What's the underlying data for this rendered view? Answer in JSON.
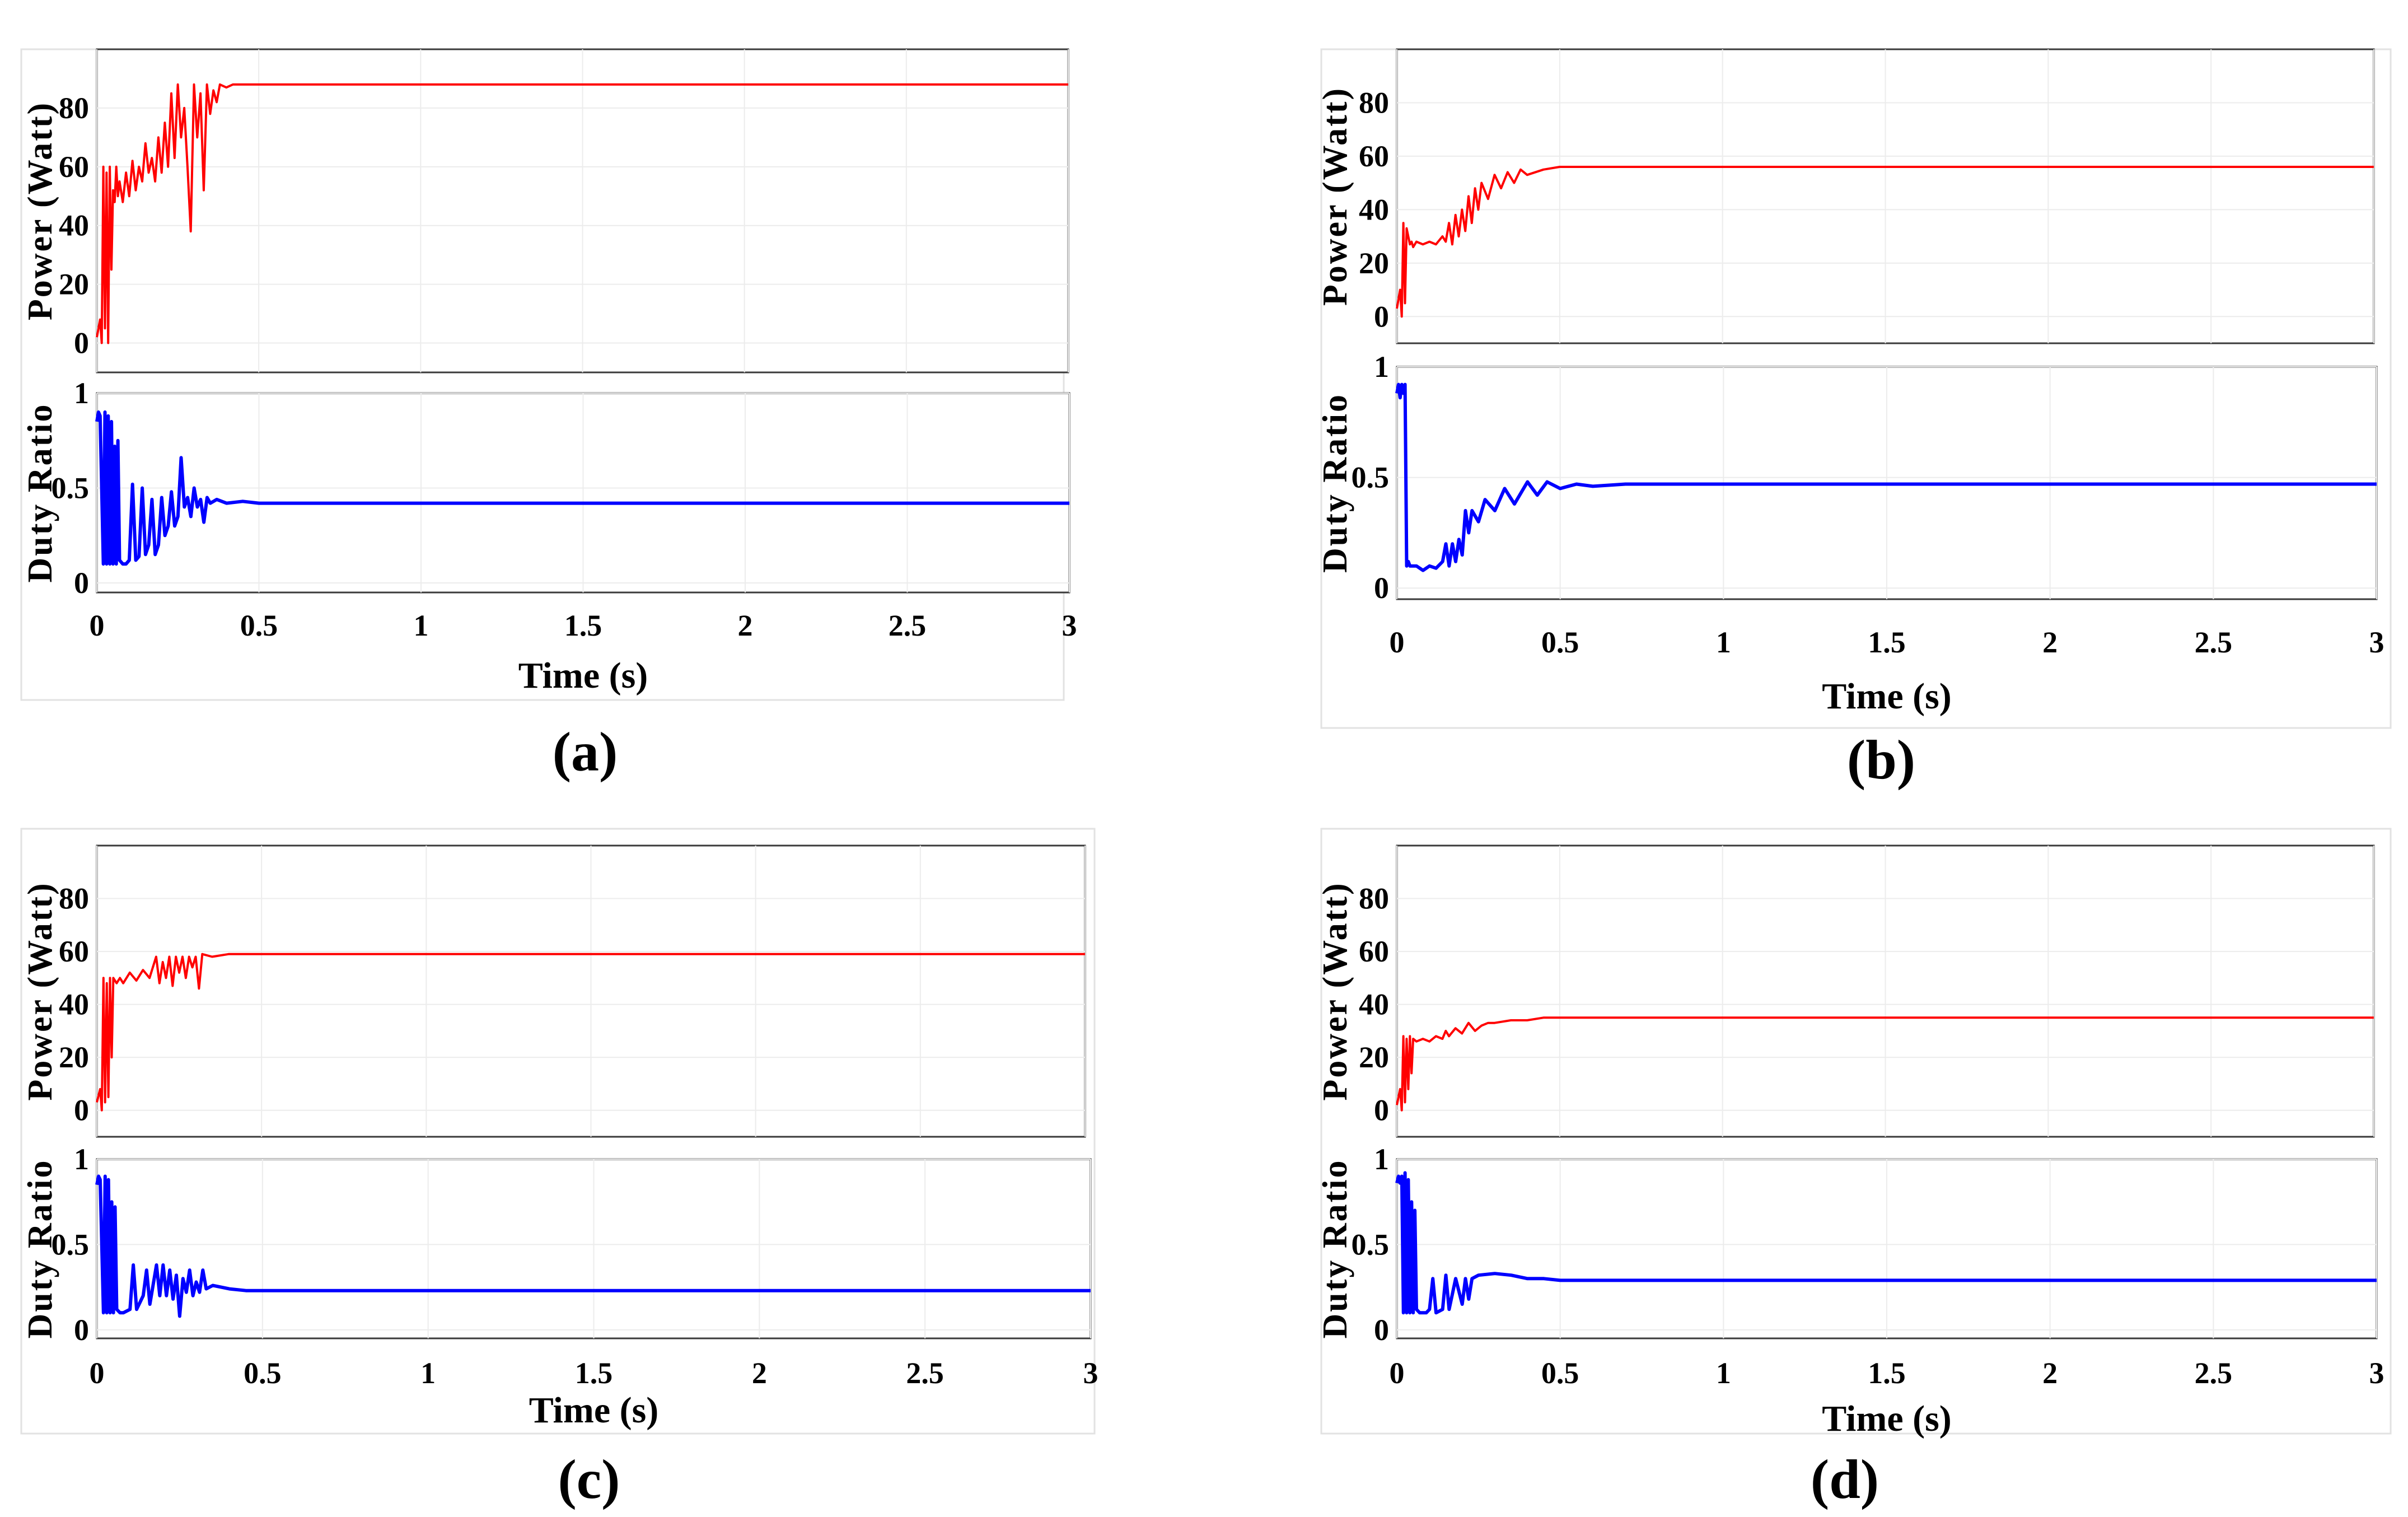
{
  "figure": {
    "panels": [
      "a",
      "b",
      "c",
      "d"
    ]
  },
  "chart_data": [
    {
      "id": "a",
      "type": "line",
      "caption": "(a)",
      "xlabel": "Time (s)",
      "xlim": [
        0,
        3
      ],
      "xticks": [
        0,
        0.5,
        1,
        1.5,
        2,
        2.5,
        3
      ],
      "xtick_labels": [
        "0",
        "0.5",
        "1",
        "1.5",
        "2",
        "2.5",
        "3"
      ],
      "subplots": [
        {
          "name": "power",
          "ylabel": "Power (Watt)",
          "ylim": [
            -10,
            100
          ],
          "yticks": [
            0,
            20,
            40,
            60,
            80
          ],
          "ytick_labels": [
            "0",
            "20",
            "40",
            "60",
            "80"
          ],
          "color": "#ff0000",
          "series": {
            "name": "Power",
            "x": [
              0,
              0.01,
              0.015,
              0.02,
              0.025,
              0.03,
              0.035,
              0.04,
              0.045,
              0.05,
              0.055,
              0.06,
              0.065,
              0.07,
              0.08,
              0.09,
              0.1,
              0.11,
              0.12,
              0.13,
              0.14,
              0.15,
              0.16,
              0.17,
              0.18,
              0.19,
              0.2,
              0.21,
              0.22,
              0.23,
              0.24,
              0.25,
              0.26,
              0.27,
              0.28,
              0.29,
              0.3,
              0.31,
              0.32,
              0.33,
              0.34,
              0.35,
              0.36,
              0.37,
              0.38,
              0.4,
              0.42,
              0.45,
              0.5,
              0.6,
              1,
              1.5,
              2,
              2.5,
              3
            ],
            "y": [
              2,
              8,
              0,
              60,
              5,
              58,
              0,
              60,
              25,
              52,
              48,
              60,
              50,
              55,
              48,
              58,
              50,
              62,
              52,
              60,
              55,
              68,
              58,
              63,
              55,
              70,
              58,
              75,
              60,
              85,
              63,
              88,
              70,
              80,
              60,
              38,
              88,
              70,
              85,
              52,
              88,
              78,
              86,
              82,
              88,
              87,
              88,
              88,
              88,
              88,
              88,
              88,
              88,
              88,
              88
            ]
          }
        },
        {
          "name": "duty",
          "ylabel": "Duty Ratio",
          "ylim": [
            -0.05,
            1
          ],
          "yticks": [
            0,
            0.5,
            1
          ],
          "ytick_labels": [
            "0",
            "0.5",
            "1"
          ],
          "color": "#0000ff",
          "series": {
            "name": "Duty Ratio",
            "x": [
              0,
              0.005,
              0.01,
              0.02,
              0.025,
              0.03,
              0.035,
              0.04,
              0.045,
              0.05,
              0.055,
              0.06,
              0.065,
              0.07,
              0.08,
              0.09,
              0.1,
              0.11,
              0.12,
              0.13,
              0.14,
              0.15,
              0.16,
              0.17,
              0.18,
              0.19,
              0.2,
              0.21,
              0.22,
              0.23,
              0.24,
              0.25,
              0.26,
              0.27,
              0.28,
              0.29,
              0.3,
              0.31,
              0.32,
              0.33,
              0.34,
              0.35,
              0.37,
              0.4,
              0.45,
              0.5,
              0.6,
              1,
              1.5,
              2,
              2.5,
              3
            ],
            "y": [
              0.85,
              0.9,
              0.88,
              0.1,
              0.9,
              0.1,
              0.88,
              0.1,
              0.85,
              0.1,
              0.72,
              0.1,
              0.75,
              0.12,
              0.1,
              0.1,
              0.12,
              0.52,
              0.12,
              0.14,
              0.5,
              0.15,
              0.2,
              0.44,
              0.15,
              0.2,
              0.45,
              0.25,
              0.3,
              0.48,
              0.3,
              0.35,
              0.66,
              0.4,
              0.45,
              0.35,
              0.5,
              0.4,
              0.44,
              0.32,
              0.45,
              0.42,
              0.44,
              0.42,
              0.43,
              0.42,
              0.42,
              0.42,
              0.42,
              0.42,
              0.42,
              0.42
            ]
          }
        }
      ]
    },
    {
      "id": "b",
      "type": "line",
      "caption": "(b)",
      "xlabel": "Time (s)",
      "xlim": [
        0,
        3
      ],
      "xticks": [
        0,
        0.5,
        1,
        1.5,
        2,
        2.5,
        3
      ],
      "xtick_labels": [
        "0",
        "0.5",
        "1",
        "1.5",
        "2",
        "2.5",
        "3"
      ],
      "subplots": [
        {
          "name": "power",
          "ylabel": "Power (Watt)",
          "ylim": [
            -10,
            100
          ],
          "yticks": [
            0,
            20,
            40,
            60,
            80
          ],
          "ytick_labels": [
            "0",
            "20",
            "40",
            "60",
            "80"
          ],
          "color": "#ff0000",
          "series": {
            "name": "Power",
            "x": [
              0,
              0.01,
              0.015,
              0.02,
              0.025,
              0.03,
              0.04,
              0.045,
              0.05,
              0.06,
              0.08,
              0.1,
              0.12,
              0.14,
              0.15,
              0.16,
              0.17,
              0.18,
              0.19,
              0.2,
              0.21,
              0.22,
              0.23,
              0.24,
              0.25,
              0.26,
              0.28,
              0.3,
              0.32,
              0.34,
              0.36,
              0.38,
              0.4,
              0.45,
              0.5,
              0.55,
              0.6,
              1,
              1.5,
              2,
              2.5,
              3
            ],
            "y": [
              3,
              10,
              0,
              35,
              5,
              33,
              27,
              28,
              26,
              28,
              27,
              28,
              27,
              30,
              28,
              35,
              27,
              38,
              30,
              40,
              32,
              45,
              35,
              48,
              40,
              50,
              44,
              53,
              48,
              54,
              50,
              55,
              53,
              55,
              56,
              56,
              56,
              56,
              56,
              56,
              56,
              56
            ]
          }
        },
        {
          "name": "duty",
          "ylabel": "Duty Ratio",
          "ylim": [
            -0.05,
            1
          ],
          "yticks": [
            0,
            0.5,
            1
          ],
          "ytick_labels": [
            "0",
            "0.5",
            "1"
          ],
          "color": "#0000ff",
          "series": {
            "name": "Duty Ratio",
            "x": [
              0,
              0.005,
              0.01,
              0.015,
              0.02,
              0.025,
              0.03,
              0.035,
              0.04,
              0.06,
              0.08,
              0.1,
              0.12,
              0.14,
              0.15,
              0.16,
              0.17,
              0.18,
              0.19,
              0.2,
              0.21,
              0.22,
              0.23,
              0.25,
              0.27,
              0.3,
              0.33,
              0.36,
              0.4,
              0.43,
              0.46,
              0.5,
              0.55,
              0.6,
              0.7,
              1,
              1.5,
              2,
              2.5,
              3
            ],
            "y": [
              0.88,
              0.92,
              0.86,
              0.92,
              0.88,
              0.92,
              0.1,
              0.12,
              0.1,
              0.1,
              0.08,
              0.1,
              0.09,
              0.12,
              0.2,
              0.1,
              0.2,
              0.12,
              0.22,
              0.15,
              0.35,
              0.25,
              0.35,
              0.3,
              0.4,
              0.35,
              0.45,
              0.38,
              0.48,
              0.42,
              0.48,
              0.45,
              0.47,
              0.46,
              0.47,
              0.47,
              0.47,
              0.47,
              0.47,
              0.47
            ]
          }
        }
      ]
    },
    {
      "id": "c",
      "type": "line",
      "caption": "(c)",
      "xlabel": "Time (s)",
      "xlim": [
        0,
        3
      ],
      "xticks": [
        0,
        0.5,
        1,
        1.5,
        2,
        2.5,
        3
      ],
      "xtick_labels": [
        "0",
        "0.5",
        "1",
        "1.5",
        "2",
        "2.5",
        "3"
      ],
      "subplots": [
        {
          "name": "power",
          "ylabel": "Power (Watt)",
          "ylim": [
            -10,
            100
          ],
          "yticks": [
            0,
            20,
            40,
            60,
            80
          ],
          "ytick_labels": [
            "0",
            "20",
            "40",
            "60",
            "80"
          ],
          "color": "#ff0000",
          "series": {
            "name": "Power",
            "x": [
              0,
              0.01,
              0.015,
              0.02,
              0.025,
              0.03,
              0.035,
              0.04,
              0.045,
              0.05,
              0.06,
              0.07,
              0.08,
              0.1,
              0.12,
              0.14,
              0.16,
              0.18,
              0.19,
              0.2,
              0.21,
              0.22,
              0.23,
              0.24,
              0.25,
              0.26,
              0.27,
              0.28,
              0.29,
              0.3,
              0.31,
              0.32,
              0.35,
              0.4,
              0.45,
              0.5,
              0.6,
              1,
              1.5,
              2,
              2.5,
              3
            ],
            "y": [
              3,
              8,
              0,
              50,
              3,
              48,
              5,
              50,
              20,
              50,
              48,
              50,
              48,
              52,
              49,
              53,
              50,
              58,
              48,
              56,
              50,
              58,
              47,
              58,
              52,
              58,
              50,
              58,
              54,
              58,
              46,
              59,
              58,
              59,
              59,
              59,
              59,
              59,
              59,
              59,
              59,
              59
            ]
          }
        },
        {
          "name": "duty",
          "ylabel": "Duty Ratio",
          "ylim": [
            -0.05,
            1
          ],
          "yticks": [
            0,
            0.5,
            1
          ],
          "ytick_labels": [
            "0",
            "0.5",
            "1"
          ],
          "color": "#0000ff",
          "series": {
            "name": "Duty Ratio",
            "x": [
              0,
              0.005,
              0.01,
              0.02,
              0.025,
              0.03,
              0.035,
              0.04,
              0.045,
              0.05,
              0.055,
              0.06,
              0.07,
              0.08,
              0.1,
              0.11,
              0.12,
              0.14,
              0.15,
              0.16,
              0.18,
              0.19,
              0.2,
              0.21,
              0.22,
              0.23,
              0.24,
              0.25,
              0.26,
              0.27,
              0.28,
              0.29,
              0.3,
              0.31,
              0.32,
              0.33,
              0.35,
              0.4,
              0.45,
              0.5,
              0.6,
              1,
              1.5,
              2,
              2.5,
              3
            ],
            "y": [
              0.85,
              0.9,
              0.88,
              0.1,
              0.9,
              0.1,
              0.88,
              0.1,
              0.75,
              0.1,
              0.72,
              0.12,
              0.1,
              0.1,
              0.12,
              0.38,
              0.12,
              0.2,
              0.35,
              0.15,
              0.38,
              0.2,
              0.38,
              0.2,
              0.35,
              0.18,
              0.32,
              0.08,
              0.3,
              0.22,
              0.35,
              0.2,
              0.28,
              0.22,
              0.35,
              0.24,
              0.26,
              0.24,
              0.23,
              0.23,
              0.23,
              0.23,
              0.23,
              0.23,
              0.23,
              0.23
            ]
          }
        }
      ]
    },
    {
      "id": "d",
      "type": "line",
      "caption": "(d)",
      "xlabel": "Time (s)",
      "xlim": [
        0,
        3
      ],
      "xticks": [
        0,
        0.5,
        1,
        1.5,
        2,
        2.5,
        3
      ],
      "xtick_labels": [
        "0",
        "0.5",
        "1",
        "1.5",
        "2",
        "2.5",
        "3"
      ],
      "subplots": [
        {
          "name": "power",
          "ylabel": "Power (Watt)",
          "ylim": [
            -10,
            100
          ],
          "yticks": [
            0,
            20,
            40,
            60,
            80
          ],
          "ytick_labels": [
            "0",
            "20",
            "40",
            "60",
            "80"
          ],
          "color": "#ff0000",
          "series": {
            "name": "Power",
            "x": [
              0,
              0.01,
              0.015,
              0.02,
              0.025,
              0.03,
              0.035,
              0.04,
              0.045,
              0.05,
              0.06,
              0.08,
              0.1,
              0.12,
              0.14,
              0.15,
              0.16,
              0.18,
              0.2,
              0.22,
              0.24,
              0.26,
              0.28,
              0.3,
              0.35,
              0.4,
              0.45,
              0.5,
              0.6,
              1,
              1.5,
              2,
              2.5,
              3
            ],
            "y": [
              2,
              8,
              0,
              28,
              3,
              27,
              8,
              28,
              14,
              27,
              26,
              27,
              26,
              28,
              27,
              30,
              28,
              31,
              29,
              33,
              30,
              32,
              33,
              33,
              34,
              34,
              35,
              35,
              35,
              35,
              35,
              35,
              35,
              35
            ]
          }
        },
        {
          "name": "duty",
          "ylabel": "Duty Ratio",
          "ylim": [
            -0.05,
            1
          ],
          "yticks": [
            0,
            0.5,
            1
          ],
          "ytick_labels": [
            "0",
            "0.5",
            "1"
          ],
          "color": "#0000ff",
          "series": {
            "name": "Duty Ratio",
            "x": [
              0,
              0.005,
              0.01,
              0.015,
              0.02,
              0.025,
              0.03,
              0.035,
              0.04,
              0.045,
              0.05,
              0.055,
              0.06,
              0.07,
              0.08,
              0.09,
              0.1,
              0.11,
              0.12,
              0.14,
              0.15,
              0.16,
              0.18,
              0.2,
              0.21,
              0.22,
              0.23,
              0.25,
              0.3,
              0.35,
              0.4,
              0.45,
              0.5,
              0.6,
              1,
              1.5,
              2,
              2.5,
              3
            ],
            "y": [
              0.86,
              0.9,
              0.86,
              0.9,
              0.1,
              0.92,
              0.1,
              0.88,
              0.1,
              0.75,
              0.1,
              0.7,
              0.12,
              0.1,
              0.1,
              0.1,
              0.12,
              0.3,
              0.1,
              0.12,
              0.32,
              0.12,
              0.3,
              0.15,
              0.3,
              0.18,
              0.3,
              0.32,
              0.33,
              0.32,
              0.3,
              0.3,
              0.29,
              0.29,
              0.29,
              0.29,
              0.29,
              0.29,
              0.29
            ]
          }
        }
      ]
    }
  ]
}
